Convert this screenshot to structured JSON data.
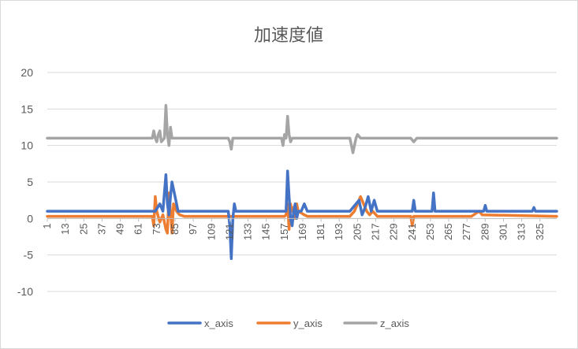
{
  "chart_data": {
    "type": "line",
    "title": "加速度値",
    "xlabel": "",
    "ylabel": "",
    "ylim": [
      -10,
      20
    ],
    "yticks": [
      -10,
      -5,
      0,
      5,
      10,
      15,
      20
    ],
    "x_tick_labels": [
      "1",
      "13",
      "25",
      "37",
      "49",
      "61",
      "73",
      "85",
      "97",
      "109",
      "121",
      "133",
      "145",
      "157",
      "169",
      "181",
      "193",
      "205",
      "217",
      "229",
      "241",
      "253",
      "265",
      "277",
      "289",
      "301",
      "313",
      "325"
    ],
    "legend_position": "bottom",
    "grid": true,
    "colors": {
      "x_axis": "#4472c4",
      "y_axis": "#ed7d31",
      "z_axis": "#a5a5a5"
    },
    "series": [
      {
        "name": "x_axis",
        "points": [
          [
            1,
            1
          ],
          [
            72,
            1
          ],
          [
            75,
            2
          ],
          [
            77,
            1
          ],
          [
            79,
            6
          ],
          [
            80,
            2
          ],
          [
            81,
            0.5
          ],
          [
            82,
            3
          ],
          [
            83,
            5
          ],
          [
            85,
            3
          ],
          [
            87,
            1
          ],
          [
            120,
            1
          ],
          [
            121,
            -1
          ],
          [
            122,
            -5.5
          ],
          [
            123,
            0
          ],
          [
            124,
            2
          ],
          [
            125,
            1
          ],
          [
            158,
            1
          ],
          [
            159,
            6.5
          ],
          [
            160,
            3
          ],
          [
            161,
            0
          ],
          [
            162,
            -1
          ],
          [
            163,
            1
          ],
          [
            164,
            2
          ],
          [
            165,
            0
          ],
          [
            166,
            1
          ],
          [
            168,
            1
          ],
          [
            170,
            2
          ],
          [
            172,
            1
          ],
          [
            200,
            1
          ],
          [
            204,
            2
          ],
          [
            206,
            2.5
          ],
          [
            208,
            0.5
          ],
          [
            210,
            1.5
          ],
          [
            212,
            3
          ],
          [
            214,
            1
          ],
          [
            216,
            2.5
          ],
          [
            218,
            1
          ],
          [
            241,
            1
          ],
          [
            242,
            2.5
          ],
          [
            243,
            1
          ],
          [
            254,
            1
          ],
          [
            255,
            3.5
          ],
          [
            256,
            1
          ],
          [
            288,
            1
          ],
          [
            289,
            1.8
          ],
          [
            290,
            1
          ],
          [
            320,
            1
          ],
          [
            321,
            1.5
          ],
          [
            322,
            1
          ],
          [
            336,
            1
          ]
        ]
      },
      {
        "name": "y_axis",
        "points": [
          [
            1,
            0.3
          ],
          [
            70,
            0.3
          ],
          [
            71,
            -1
          ],
          [
            72,
            3
          ],
          [
            73,
            1
          ],
          [
            75,
            -0.5
          ],
          [
            77,
            0.5
          ],
          [
            79,
            -1.5
          ],
          [
            80,
            -2
          ],
          [
            81,
            3.5
          ],
          [
            82,
            1
          ],
          [
            83,
            -2
          ],
          [
            84,
            2
          ],
          [
            86,
            1
          ],
          [
            88,
            0.5
          ],
          [
            91,
            0.3
          ],
          [
            157,
            0.3
          ],
          [
            158,
            0.5
          ],
          [
            159,
            2
          ],
          [
            160,
            -1.5
          ],
          [
            161,
            2
          ],
          [
            162,
            1
          ],
          [
            163,
            1.5
          ],
          [
            164,
            0
          ],
          [
            165,
            2
          ],
          [
            166,
            1
          ],
          [
            170,
            0.5
          ],
          [
            172,
            0.3
          ],
          [
            200,
            0.3
          ],
          [
            203,
            1
          ],
          [
            205,
            2
          ],
          [
            207,
            3
          ],
          [
            209,
            2
          ],
          [
            211,
            1
          ],
          [
            213,
            0.5
          ],
          [
            215,
            1
          ],
          [
            218,
            0.3
          ],
          [
            240,
            0.3
          ],
          [
            241,
            -1
          ],
          [
            242,
            0.3
          ],
          [
            280,
            0.3
          ],
          [
            285,
            1
          ],
          [
            287,
            0.5
          ],
          [
            336,
            0.3
          ]
        ]
      },
      {
        "name": "z_axis",
        "points": [
          [
            1,
            11
          ],
          [
            70,
            11
          ],
          [
            71,
            12
          ],
          [
            72,
            11
          ],
          [
            73,
            10.5
          ],
          [
            74,
            11.5
          ],
          [
            75,
            12
          ],
          [
            76,
            10.5
          ],
          [
            78,
            11
          ],
          [
            79,
            15.5
          ],
          [
            80,
            11.5
          ],
          [
            81,
            10
          ],
          [
            82,
            12.5
          ],
          [
            83,
            11
          ],
          [
            85,
            11
          ],
          [
            120,
            11
          ],
          [
            121,
            10.5
          ],
          [
            122,
            9.5
          ],
          [
            123,
            11
          ],
          [
            124,
            11
          ],
          [
            155,
            11
          ],
          [
            156,
            10
          ],
          [
            157,
            11.5
          ],
          [
            158,
            11
          ],
          [
            159,
            14
          ],
          [
            160,
            11.5
          ],
          [
            161,
            10.5
          ],
          [
            162,
            11
          ],
          [
            200,
            11
          ],
          [
            201,
            10
          ],
          [
            202,
            9
          ],
          [
            203,
            10
          ],
          [
            204,
            11
          ],
          [
            205,
            11.5
          ],
          [
            207,
            11
          ],
          [
            240,
            11
          ],
          [
            242,
            10.5
          ],
          [
            244,
            11
          ],
          [
            336,
            11
          ]
        ]
      }
    ]
  }
}
